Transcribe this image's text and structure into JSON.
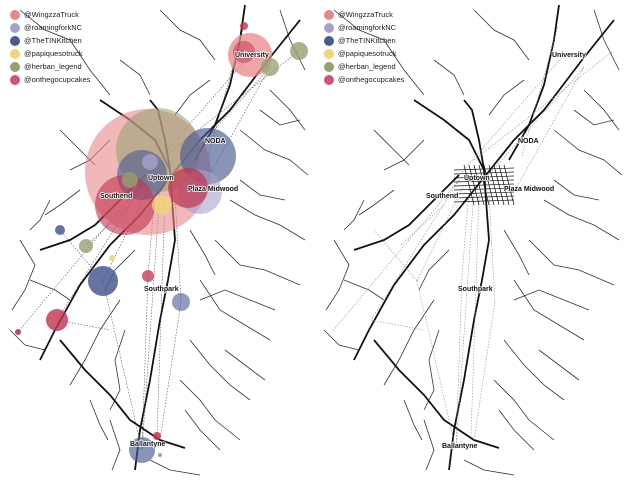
{
  "legend": [
    {
      "label": "@WingzzaTruck",
      "color": "#e8878a"
    },
    {
      "label": "@roamingforkNC",
      "color": "#a8a1cc"
    },
    {
      "label": "@TheTINKitchen",
      "color": "#4a5a93"
    },
    {
      "label": "@papiquesotruck",
      "color": "#f0d479"
    },
    {
      "label": "@herban_legend",
      "color": "#93a070"
    },
    {
      "label": "@onthegocupcakes",
      "color": "#d6507a"
    }
  ],
  "places": {
    "university": "University",
    "noda": "NODA",
    "uptown": "Uptown",
    "plaza_midwood": "Plaza Midwood",
    "southend": "Southend",
    "southpark": "Southpark",
    "ballantyne": "Ballantyne"
  }
}
